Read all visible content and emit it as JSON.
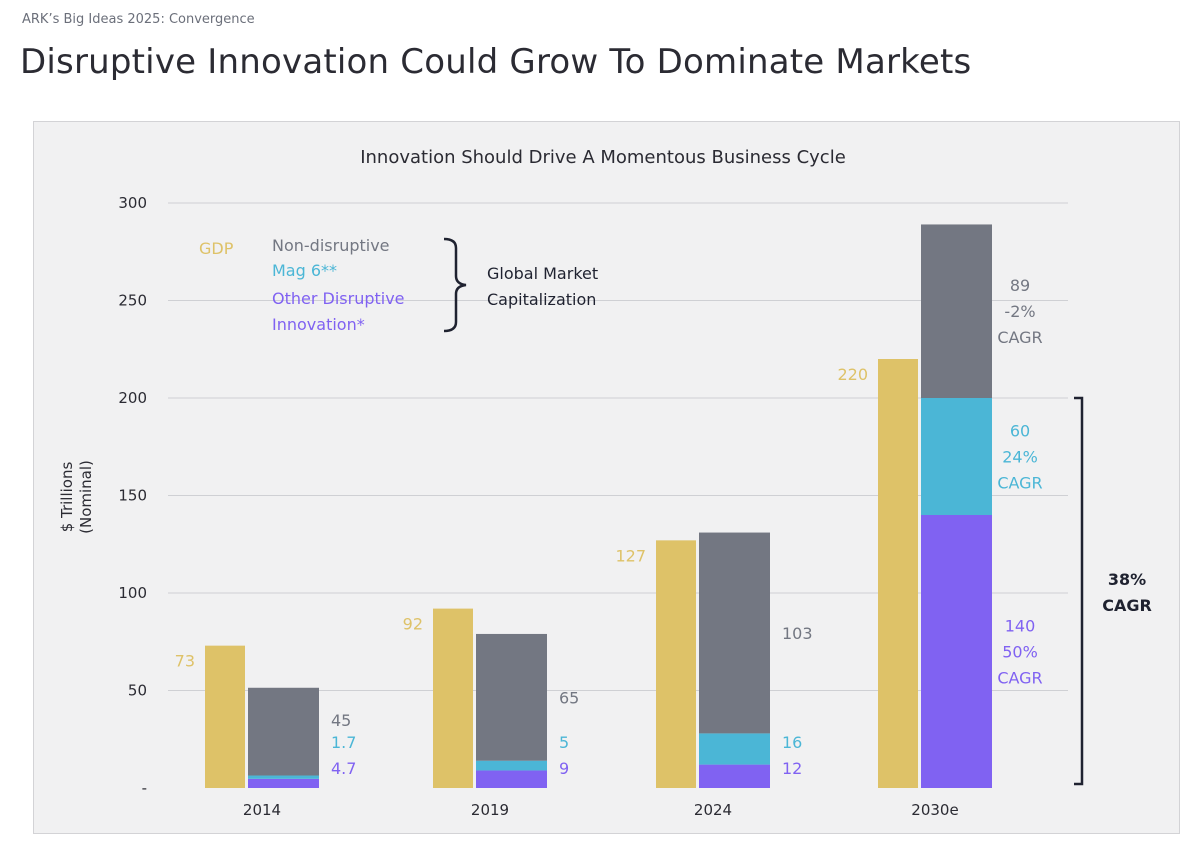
{
  "header": {
    "eyebrow": "ARK’s Big Ideas 2025: Convergence",
    "title": "Disruptive Innovation Could Grow To Dominate Markets"
  },
  "colors": {
    "gdp": "#DEC268",
    "non_disruptive": "#737782",
    "mag6": "#4BB6D6",
    "other_disruptive": "#8062F2",
    "axis_text": "#2b2b33",
    "grid": "#cfd0d4",
    "panel_bg": "#f1f1f2"
  },
  "chart_data": {
    "type": "bar",
    "title": "Innovation Should Drive A Momentous Business Cycle",
    "ylabel_lines": [
      "$ Trillions",
      "(Nominal)"
    ],
    "xlabel": "",
    "ylim": [
      0,
      300
    ],
    "yticks": [
      0,
      50,
      100,
      150,
      200,
      250,
      300
    ],
    "ytick_labels": [
      "-",
      "50",
      "100",
      "150",
      "200",
      "250",
      "300"
    ],
    "categories": [
      "2014",
      "2019",
      "2024",
      "2030e"
    ],
    "gdp": {
      "name": "GDP",
      "values": [
        73,
        92,
        127,
        220
      ],
      "labels": [
        "73",
        "92",
        "127",
        "220"
      ]
    },
    "stack_series": [
      {
        "key": "other_disruptive",
        "name": "Other Disruptive Innovation*",
        "values": [
          4.7,
          9,
          12,
          140
        ],
        "labels": [
          [
            "4.7"
          ],
          [
            "9"
          ],
          [
            "12"
          ],
          [
            "140",
            "50%",
            "CAGR"
          ]
        ]
      },
      {
        "key": "mag6",
        "name": "Mag 6**",
        "values": [
          1.7,
          5,
          16,
          60
        ],
        "labels": [
          [
            "1.7"
          ],
          [
            "5"
          ],
          [
            "16"
          ],
          [
            "60",
            "24%",
            "CAGR"
          ]
        ]
      },
      {
        "key": "non_disruptive",
        "name": "Non-disruptive",
        "values": [
          45,
          65,
          103,
          89
        ],
        "labels": [
          [
            "45"
          ],
          [
            "65"
          ],
          [
            "103"
          ],
          [
            "89",
            "-2%",
            "CAGR"
          ]
        ]
      }
    ],
    "legend": {
      "gdp_label": "GDP",
      "items": [
        "Non-disruptive",
        "Mag 6**",
        "Other Disruptive",
        "Innovation*"
      ],
      "group_label_lines": [
        "Global Market",
        "Capitalization"
      ],
      "placement": "top-left"
    },
    "callout": {
      "lines": [
        "38%",
        "CAGR"
      ],
      "spans": "Mag 6** + Other Disruptive Innovation* (2030e)"
    },
    "grid": true
  }
}
